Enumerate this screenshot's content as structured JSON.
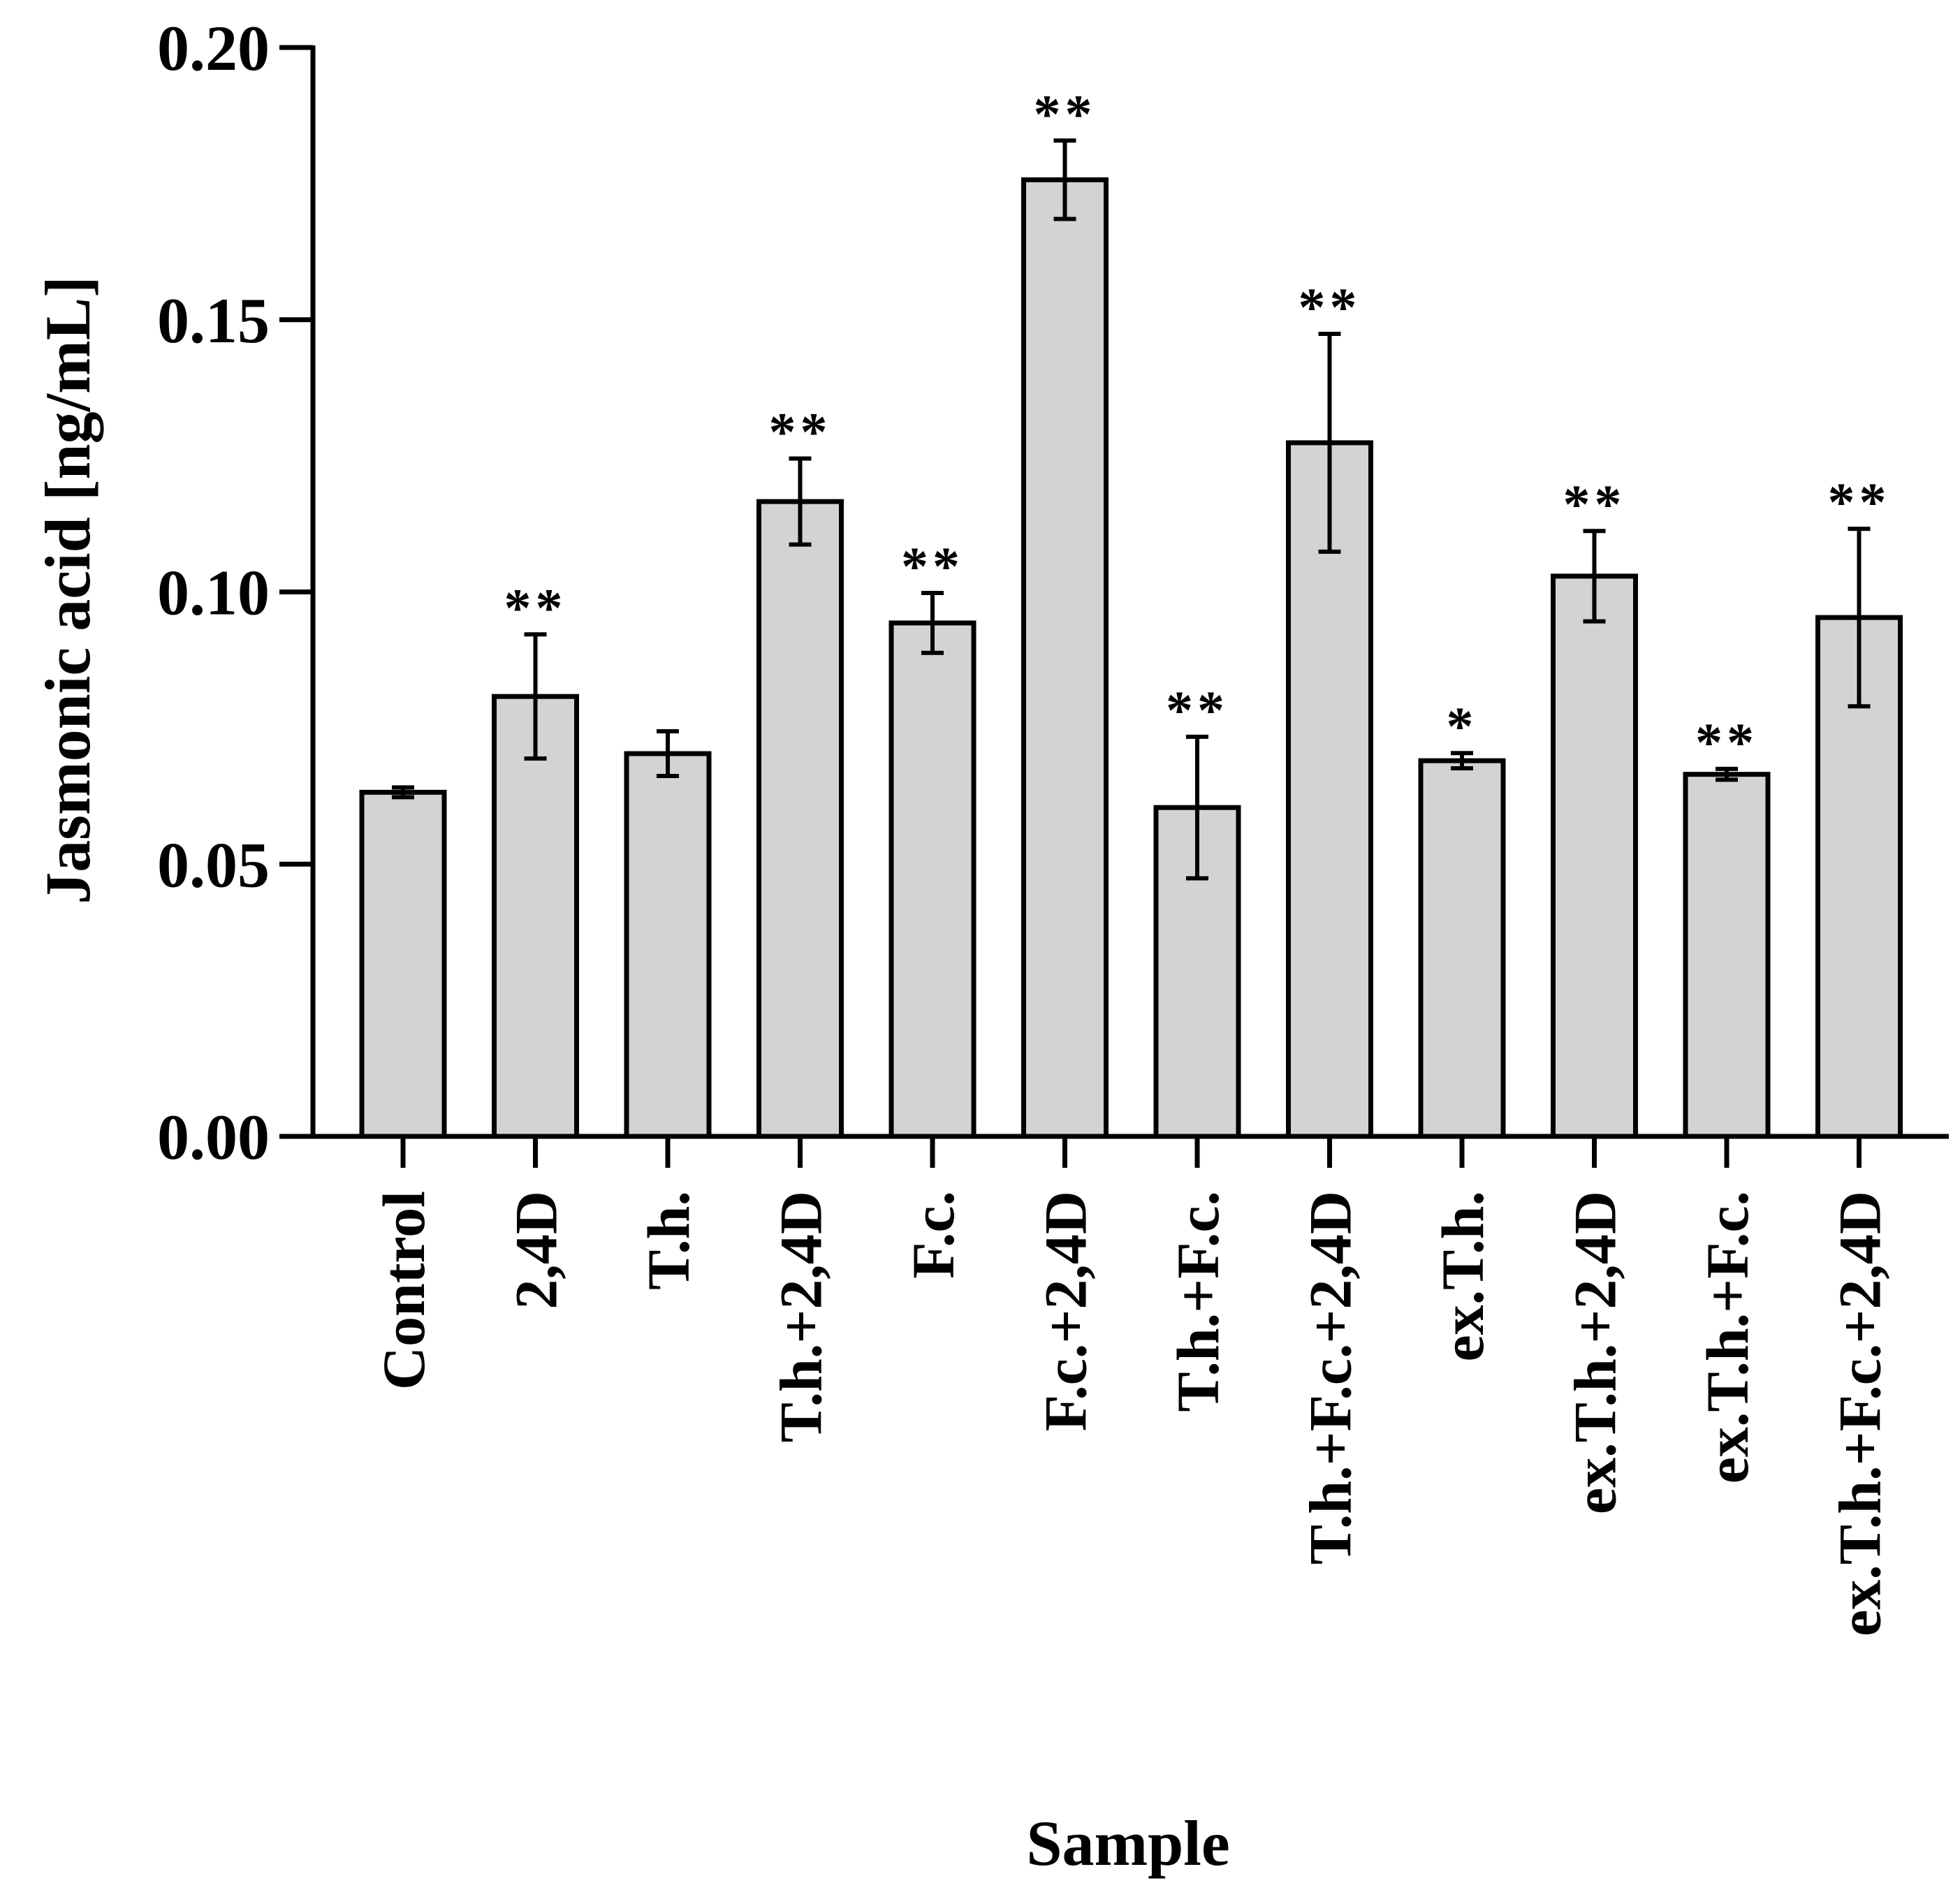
{
  "chart_data": {
    "type": "bar",
    "title": "",
    "xlabel": "Sample",
    "ylabel": "Jasmonic acid [ng/mL]",
    "ylim": [
      0,
      0.2
    ],
    "yticks": [
      "0.00",
      "0.05",
      "0.10",
      "0.15",
      "0.20"
    ],
    "grid": false,
    "bar_color": "#d3d3d3",
    "categories": [
      "Control",
      "2,4D",
      "T.h.",
      "T.h.+2,4D",
      "F.c.",
      "F.c.+2,4D",
      "T.h.+F.c.",
      "T.h.+F.c.+2,4D",
      "ex.T.h.",
      "ex.T.h.+2,4D",
      "ex.T.h.+F.c.",
      "ex.T.h.+F.c.+2,4D"
    ],
    "values": [
      0.0632,
      0.0808,
      0.0703,
      0.1166,
      0.0943,
      0.1757,
      0.0604,
      0.1274,
      0.069,
      0.1029,
      0.0665,
      0.0953
    ],
    "errors": [
      0.0009,
      0.0114,
      0.0041,
      0.0079,
      0.0055,
      0.0072,
      0.013,
      0.02,
      0.0014,
      0.0083,
      0.001,
      0.0163
    ],
    "significance": [
      "",
      "**",
      "",
      "**",
      "**",
      "**",
      "**",
      "**",
      "*",
      "**",
      "**",
      "**"
    ]
  }
}
